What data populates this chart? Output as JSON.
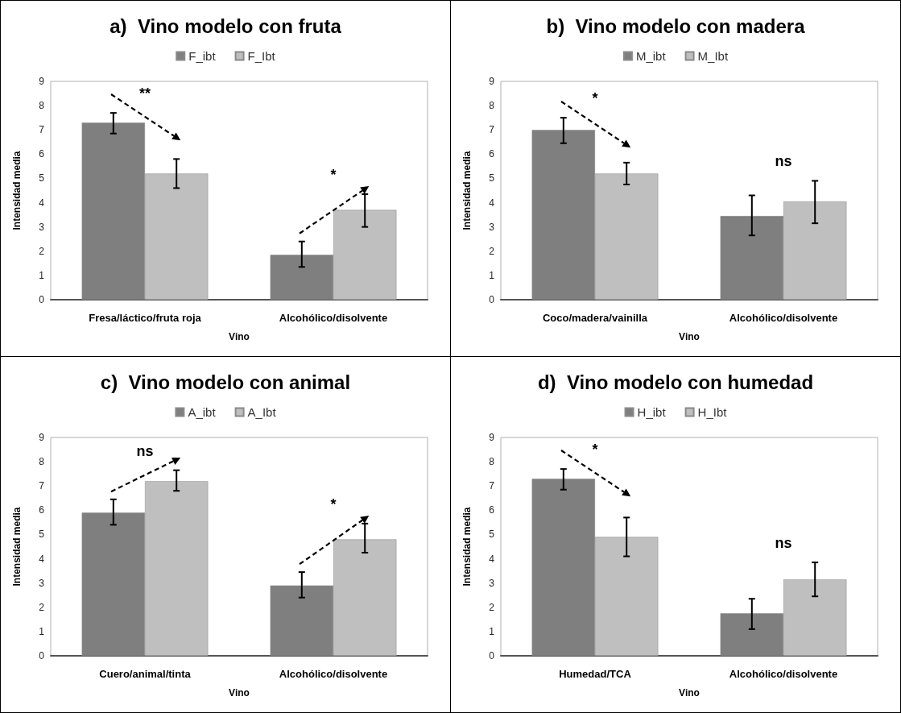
{
  "chart_data": [
    {
      "type": "bar",
      "title": "a)  Vino modelo con fruta",
      "xlabel": "Vino",
      "ylabel": "Intensidad media",
      "categories": [
        "Fresa/láctico/fruta roja",
        "Alcohólico/disolvente"
      ],
      "series": [
        {
          "name": "F_ibt",
          "color": "#7f7f7f",
          "values": [
            7.3,
            1.85
          ],
          "errors": [
            [
              6.85,
              7.7
            ],
            [
              1.35,
              2.4
            ]
          ]
        },
        {
          "name": "F_Ibt",
          "color": "#bfbfbf",
          "values": [
            5.2,
            3.7
          ],
          "errors": [
            [
              4.6,
              5.8
            ],
            [
              3.0,
              4.35
            ]
          ]
        }
      ],
      "ylim": [
        0,
        9
      ],
      "yticks": [
        0,
        1,
        2,
        3,
        4,
        5,
        6,
        7,
        8,
        9
      ],
      "grid": false,
      "legend": "top",
      "annotations": [
        "**",
        "*"
      ]
    },
    {
      "type": "bar",
      "title": "b)  Vino modelo con madera",
      "xlabel": "Vino",
      "ylabel": "Intensidad media",
      "categories": [
        "Coco/madera/vainilla",
        "Alcohólico/disolvente"
      ],
      "series": [
        {
          "name": "M_ibt",
          "color": "#7f7f7f",
          "values": [
            7.0,
            3.45
          ],
          "errors": [
            [
              6.45,
              7.5
            ],
            [
              2.65,
              4.3
            ]
          ]
        },
        {
          "name": "M_Ibt",
          "color": "#bfbfbf",
          "values": [
            5.2,
            4.05
          ],
          "errors": [
            [
              4.75,
              5.65
            ],
            [
              3.15,
              4.9
            ]
          ]
        }
      ],
      "ylim": [
        0,
        9
      ],
      "yticks": [
        0,
        1,
        2,
        3,
        4,
        5,
        6,
        7,
        8,
        9
      ],
      "grid": false,
      "legend": "top",
      "annotations": [
        "*",
        "ns"
      ]
    },
    {
      "type": "bar",
      "title": "c)  Vino modelo con animal",
      "xlabel": "Vino",
      "ylabel": "Intensidad media",
      "categories": [
        "Cuero/animal/tinta",
        "Alcohólico/disolvente"
      ],
      "series": [
        {
          "name": "A_ibt",
          "color": "#7f7f7f",
          "values": [
            5.9,
            2.9
          ],
          "errors": [
            [
              5.4,
              6.45
            ],
            [
              2.4,
              3.45
            ]
          ]
        },
        {
          "name": "A_Ibt",
          "color": "#bfbfbf",
          "values": [
            7.2,
            4.8
          ],
          "errors": [
            [
              6.8,
              7.65
            ],
            [
              4.25,
              5.45
            ]
          ]
        }
      ],
      "ylim": [
        0,
        9
      ],
      "yticks": [
        0,
        1,
        2,
        3,
        4,
        5,
        6,
        7,
        8,
        9
      ],
      "grid": false,
      "legend": "top",
      "annotations": [
        "ns",
        "*"
      ]
    },
    {
      "type": "bar",
      "title": "d)  Vino modelo con humedad",
      "xlabel": "Vino",
      "ylabel": "Intensidad media",
      "categories": [
        "Humedad/TCA",
        "Alcohólico/disolvente"
      ],
      "series": [
        {
          "name": "H_ibt",
          "color": "#7f7f7f",
          "values": [
            7.3,
            1.75
          ],
          "errors": [
            [
              6.85,
              7.7
            ],
            [
              1.1,
              2.35
            ]
          ]
        },
        {
          "name": "H_Ibt",
          "color": "#bfbfbf",
          "values": [
            4.9,
            3.15
          ],
          "errors": [
            [
              4.1,
              5.7
            ],
            [
              2.45,
              3.85
            ]
          ]
        }
      ],
      "ylim": [
        0,
        9
      ],
      "yticks": [
        0,
        1,
        2,
        3,
        4,
        5,
        6,
        7,
        8,
        9
      ],
      "grid": false,
      "legend": "top",
      "annotations": [
        "*",
        "ns"
      ]
    }
  ]
}
